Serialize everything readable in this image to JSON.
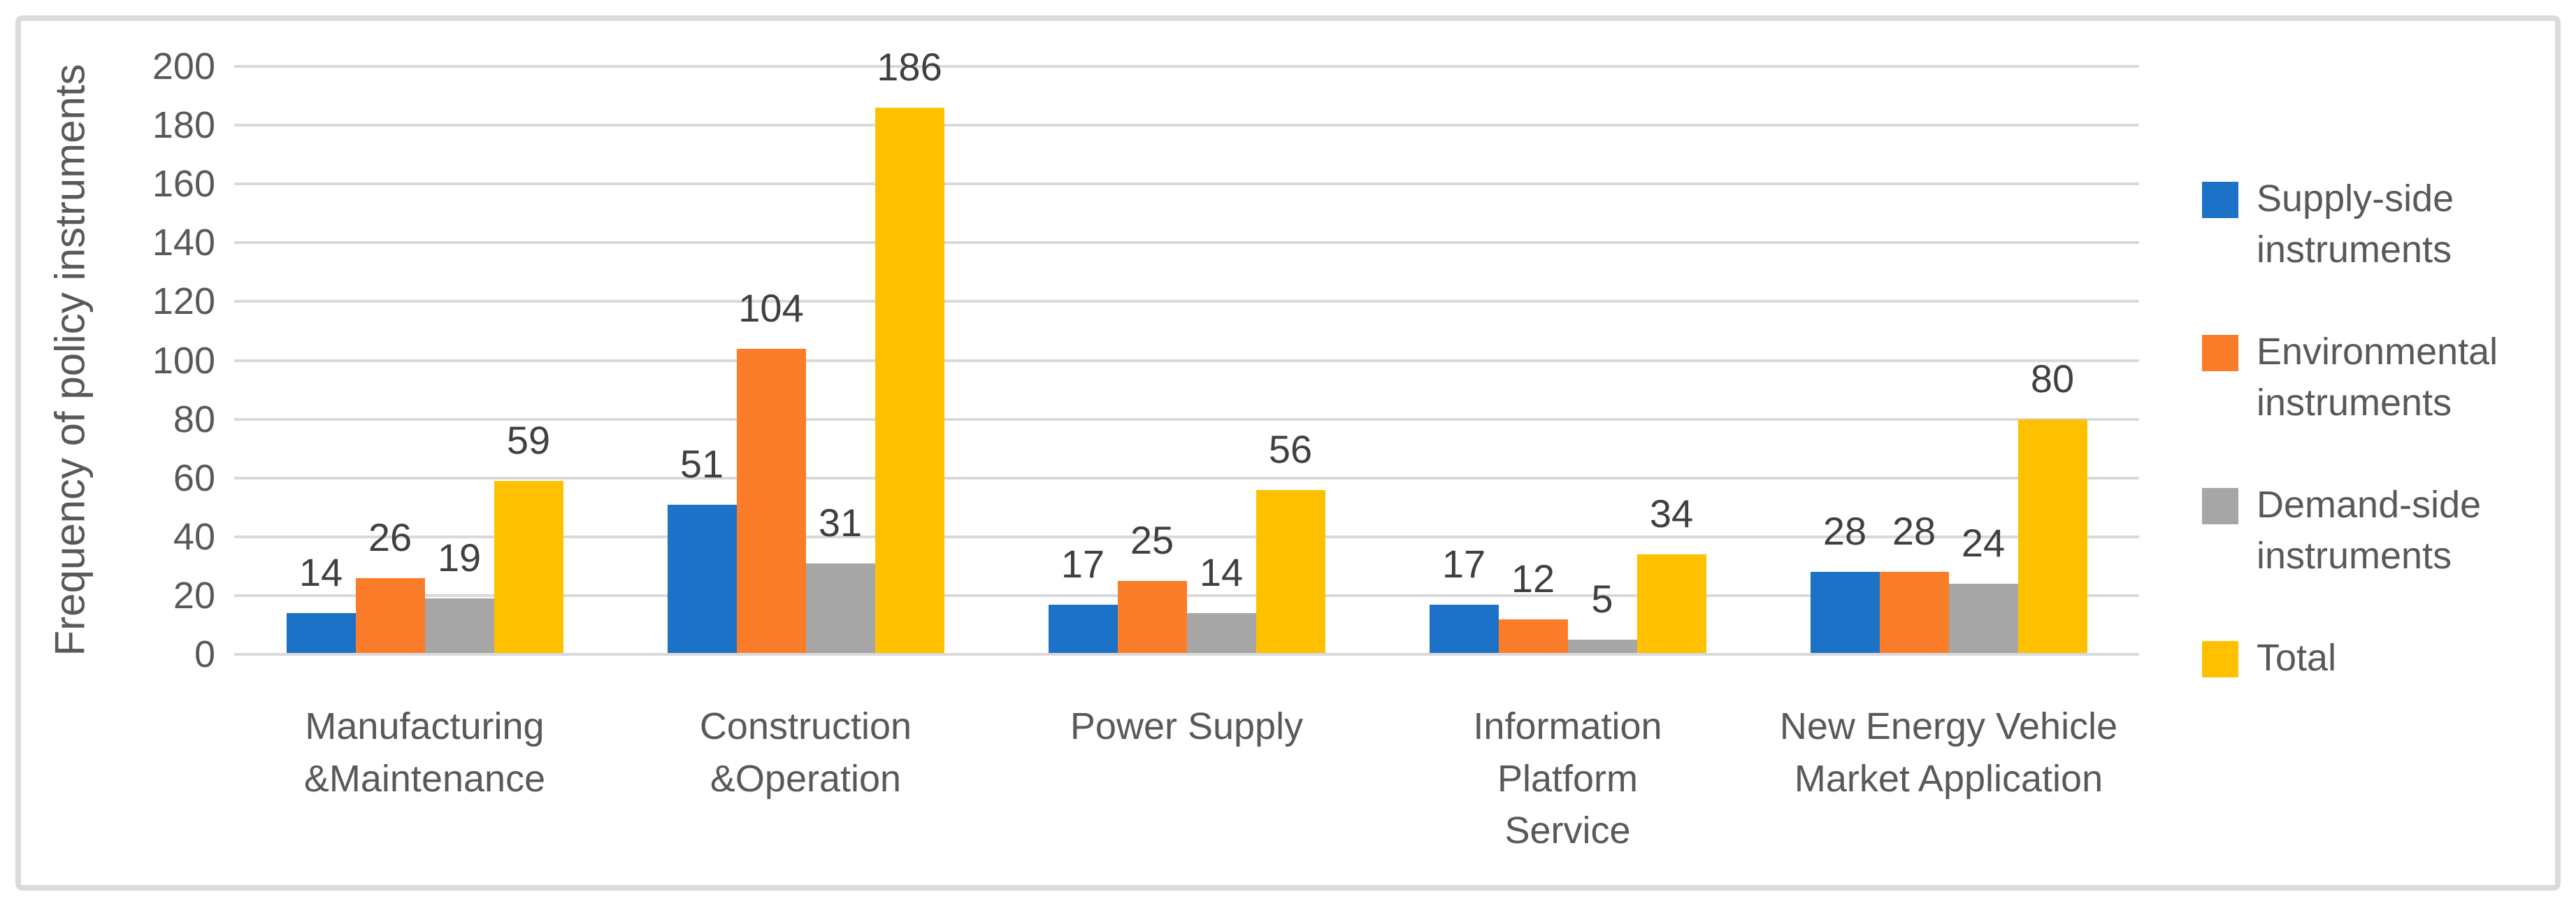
{
  "chart_data": {
    "type": "bar",
    "title": "",
    "xlabel": "",
    "ylabel": "Frequency of policy instruments",
    "ylim": [
      0,
      200
    ],
    "yticks": [
      0,
      20,
      40,
      60,
      80,
      100,
      120,
      140,
      160,
      180,
      200
    ],
    "grid": true,
    "legend_position": "right",
    "categories": [
      "Manufacturing\n&Maintenance",
      "Construction\n&Operation",
      "Power Supply",
      "Information\nPlatform\nService",
      "New Energy Vehicle\nMarket Application"
    ],
    "series": [
      {
        "name": "Supply-side\ninstruments",
        "color": "#1B72C6",
        "values": [
          14,
          51,
          17,
          17,
          28
        ]
      },
      {
        "name": "Environmental\ninstruments",
        "color": "#FB7D29",
        "values": [
          26,
          104,
          25,
          12,
          28
        ]
      },
      {
        "name": "Demand-side\ninstruments",
        "color": "#A6A6A6",
        "values": [
          19,
          31,
          14,
          5,
          24
        ]
      },
      {
        "name": "Total",
        "color": "#FFC000",
        "values": [
          59,
          186,
          56,
          34,
          80
        ]
      }
    ]
  },
  "colors": {
    "text": "#595959",
    "data_label_text": "#404040",
    "gridline": "#D9D9D9",
    "frame_border": "#DBDBDB",
    "background": "#FFFFFF"
  }
}
